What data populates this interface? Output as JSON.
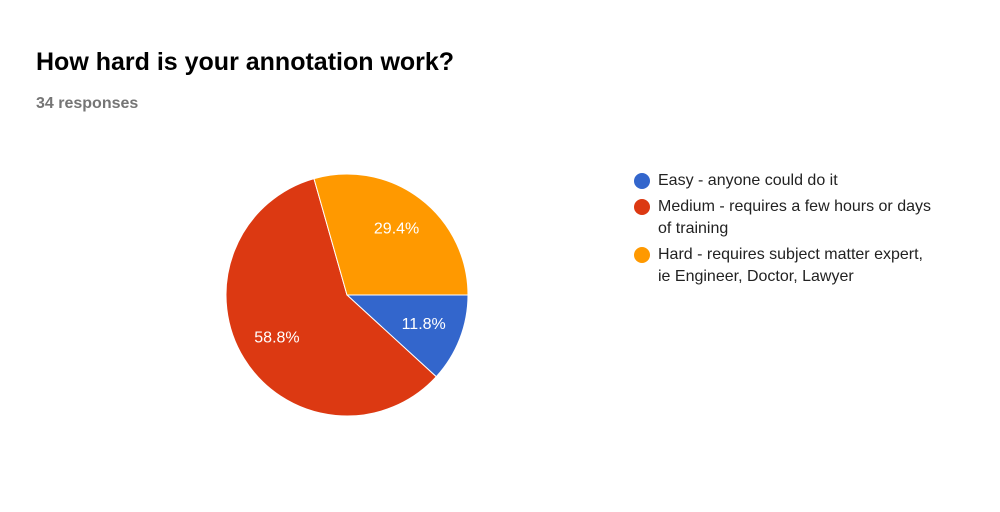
{
  "chart_data": {
    "type": "pie",
    "title": "How hard is your annotation work?",
    "subtitle": "34 responses",
    "categories": [
      "Easy - anyone could do it",
      "Medium - requires a few hours or days of training",
      "Hard - requires subject matter expert, ie Engineer, Doctor, Lawyer"
    ],
    "values": [
      11.8,
      58.8,
      29.4
    ],
    "value_labels": [
      "11.8%",
      "58.8%",
      "29.4%"
    ],
    "colors": [
      "#3366cc",
      "#dc3912",
      "#ff9900"
    ],
    "legend": "right"
  }
}
